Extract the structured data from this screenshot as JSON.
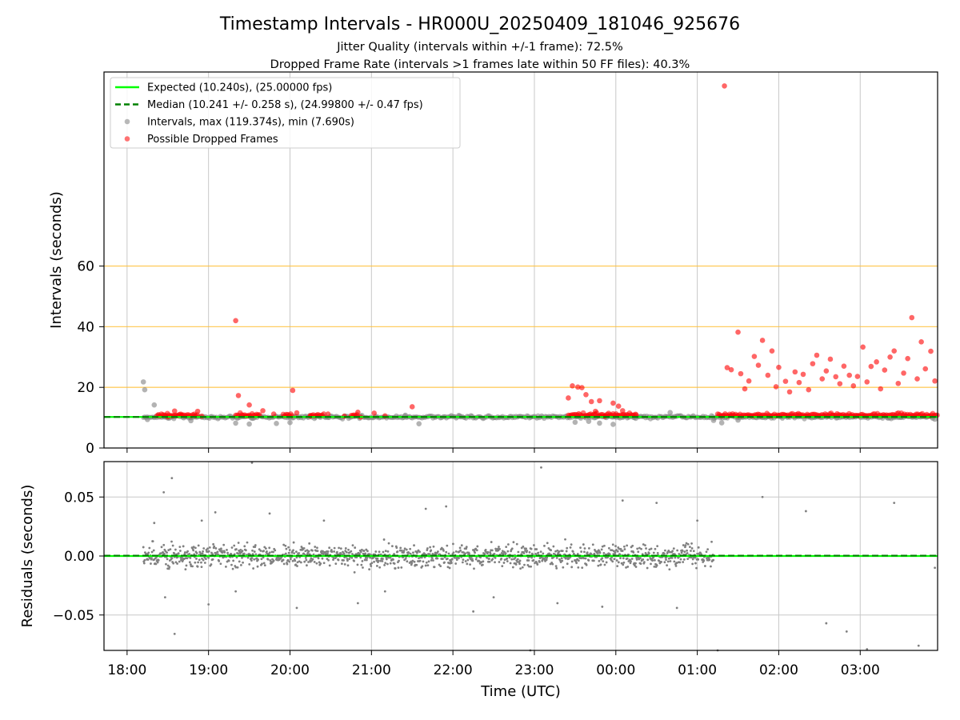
{
  "chart_data": [
    {
      "type": "scatter",
      "title": "Timestamp Intervals - HR000U_20250409_181046_925676",
      "subtitle_1": "Jitter Quality (intervals within +/-1 frame): 72.5%",
      "subtitle_2": "Dropped Frame Rate (intervals >1 frames late within 50 FF files): 40.3%",
      "xlabel": "",
      "ylabel": "Intervals (seconds)",
      "xlim": [
        "17:43",
        "03:57"
      ],
      "ylim": [
        0,
        124
      ],
      "yticks": [
        0,
        20,
        40,
        60
      ],
      "x_ticks": [
        "18:00",
        "19:00",
        "20:00",
        "21:00",
        "22:00",
        "23:00",
        "00:00",
        "01:00",
        "02:00",
        "03:00"
      ],
      "threshold_lines": [
        20,
        40,
        60
      ],
      "threshold_color": "#ffc13b",
      "grid": "vertical",
      "legend_position": "top-left",
      "legend": [
        {
          "label": "Expected (10.240s), (25.00000 fps)",
          "kind": "line",
          "color": "#00ff00"
        },
        {
          "label": "Median (10.241 +/- 0.258 s), (24.99800 +/- 0.47 fps)",
          "kind": "dashed",
          "color": "#008000"
        },
        {
          "label": "Intervals, max (119.374s), min (7.690s)",
          "kind": "marker",
          "color": "#808080"
        },
        {
          "label": "Possible Dropped Frames",
          "kind": "marker",
          "color": "#ff0000"
        }
      ],
      "series": [
        {
          "name": "Expected (10.240s), (25.00000 fps)",
          "type": "hline",
          "y": 10.24,
          "color": "#00ff00"
        },
        {
          "name": "Median (10.241 +/- 0.258 s), (24.99800 +/- 0.47 fps)",
          "type": "hline",
          "y": 10.241,
          "color": "#008000"
        },
        {
          "name": "Intervals, max (119.374s), min (7.690s)",
          "color": "#808080",
          "x": [
            "18:12",
            "18:13",
            "18:15",
            "18:20",
            "18:28",
            "18:47",
            "19:20",
            "19:30",
            "19:50",
            "20:00",
            "21:25",
            "21:35",
            "22:05",
            "23:30",
            "23:40",
            "23:48",
            "23:58",
            "00:40",
            "01:12",
            "01:18",
            "01:30",
            "03:30",
            "03:55"
          ],
          "y": [
            21.8,
            19.2,
            9.4,
            14.2,
            10.5,
            9.0,
            8.2,
            7.9,
            8.1,
            8.4,
            10.8,
            8.0,
            10.6,
            8.5,
            8.8,
            8.2,
            7.8,
            11.7,
            9.1,
            8.3,
            9.2,
            10.1,
            9.5
          ]
        },
        {
          "name": "Possible Dropped Frames",
          "color": "#ff0000",
          "x": [
            "18:30",
            "18:35",
            "18:40",
            "18:52",
            "18:55",
            "19:20",
            "19:22",
            "19:30",
            "19:40",
            "19:48",
            "20:02",
            "20:05",
            "20:15",
            "20:28",
            "20:40",
            "20:50",
            "20:52",
            "21:02",
            "21:10",
            "21:30",
            "23:25",
            "23:28",
            "23:32",
            "23:35",
            "23:38",
            "23:42",
            "23:45",
            "23:48",
            "23:52",
            "23:58",
            "00:02",
            "00:05",
            "00:15",
            "01:20",
            "01:22",
            "01:25",
            "01:30",
            "01:32",
            "01:35",
            "01:38",
            "01:42",
            "01:45",
            "01:48",
            "01:52",
            "01:55",
            "01:58",
            "02:00",
            "02:05",
            "02:08",
            "02:12",
            "02:15",
            "02:18",
            "02:22",
            "02:25",
            "02:28",
            "02:32",
            "02:35",
            "02:38",
            "02:42",
            "02:45",
            "02:48",
            "02:52",
            "02:55",
            "02:58",
            "03:02",
            "03:05",
            "03:08",
            "03:12",
            "03:15",
            "03:18",
            "03:22",
            "03:25",
            "03:28",
            "03:32",
            "03:35",
            "03:38",
            "03:42",
            "03:45",
            "03:48",
            "03:52",
            "03:55"
          ],
          "y": [
            10.3,
            12.2,
            10.8,
            12.1,
            10.5,
            42.0,
            17.3,
            14.2,
            12.3,
            11.2,
            19.0,
            11.6,
            10.5,
            11.2,
            10.5,
            11.8,
            10.2,
            11.5,
            10.6,
            13.6,
            16.5,
            20.5,
            20.1,
            19.9,
            17.6,
            15.3,
            12.1,
            15.6,
            10.5,
            14.8,
            13.8,
            12.3,
            10.9,
            119.4,
            26.5,
            25.8,
            38.2,
            24.5,
            19.5,
            22.1,
            30.2,
            27.3,
            35.5,
            24.0,
            32.0,
            20.2,
            26.6,
            22.0,
            18.5,
            25.1,
            21.6,
            24.3,
            19.2,
            27.8,
            30.6,
            22.8,
            25.4,
            29.3,
            23.5,
            21.2,
            27.0,
            24.0,
            20.5,
            23.6,
            33.3,
            21.8,
            26.9,
            28.4,
            19.5,
            25.7,
            30.0,
            32.0,
            21.3,
            24.7,
            29.5,
            43.0,
            22.8,
            35.0,
            26.1,
            31.9,
            22.1
          ]
        }
      ]
    },
    {
      "type": "scatter",
      "xlabel": "Time (UTC)",
      "ylabel": "Residuals (seconds)",
      "xlim": [
        "17:43",
        "03:57"
      ],
      "ylim": [
        -0.08,
        0.08
      ],
      "yticks": [
        "0.05",
        "0.00",
        "−0.05"
      ],
      "ytick_values": [
        0.05,
        0.0,
        -0.05
      ],
      "x_ticks": [
        "18:00",
        "19:00",
        "20:00",
        "21:00",
        "22:00",
        "23:00",
        "00:00",
        "01:00",
        "02:00",
        "03:00"
      ],
      "grid": "both",
      "series": [
        {
          "name": "",
          "type": "hline",
          "y": 0.0,
          "color": "#00ff00"
        },
        {
          "name": "",
          "type": "hline-dashed",
          "y": 0.0003,
          "color": "#008000"
        },
        {
          "name": "Residuals",
          "color": "#808080",
          "style": "dense-band",
          "x_range": [
            "18:12",
            "01:12"
          ],
          "y_center": 0.0,
          "y_spread": 0.012,
          "outliers_x": [
            "18:20",
            "18:27",
            "18:28",
            "18:33",
            "18:35",
            "18:55",
            "19:00",
            "19:05",
            "19:20",
            "19:32",
            "19:45",
            "20:05",
            "20:25",
            "20:50",
            "21:10",
            "21:40",
            "21:55",
            "22:15",
            "22:30",
            "22:57",
            "23:05",
            "23:17",
            "23:50",
            "00:05",
            "00:30",
            "00:45",
            "01:00",
            "01:15",
            "01:48",
            "02:20",
            "02:35",
            "02:50",
            "03:05",
            "03:25",
            "03:43",
            "03:55"
          ],
          "outliers_y": [
            0.028,
            0.054,
            -0.035,
            0.066,
            -0.066,
            0.03,
            -0.041,
            0.037,
            -0.03,
            0.079,
            0.036,
            -0.044,
            0.03,
            -0.04,
            -0.03,
            0.04,
            0.042,
            -0.047,
            -0.035,
            -0.08,
            0.075,
            -0.04,
            -0.043,
            0.047,
            0.045,
            -0.044,
            0.03,
            -0.08,
            0.05,
            0.038,
            -0.057,
            -0.064,
            -0.079,
            0.045,
            -0.076,
            -0.01
          ]
        }
      ]
    }
  ]
}
